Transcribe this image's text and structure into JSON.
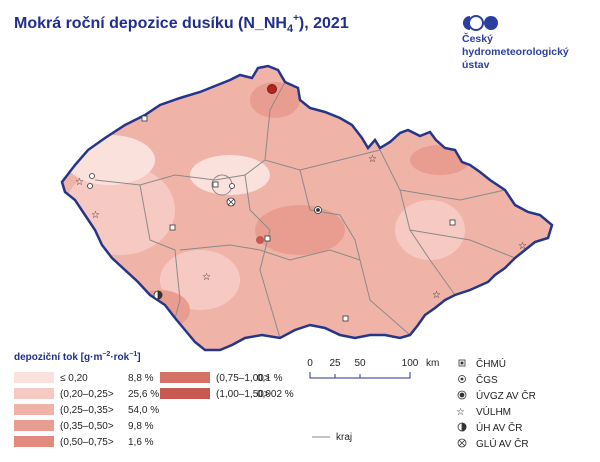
{
  "header": {
    "title": {
      "main": "Mokrá roční depozice dusíku (N_NH",
      "sub": "4",
      "sup": "+",
      "tail": "), 2021"
    },
    "logo": [
      "Český",
      "hydrometeorologický",
      "ústav"
    ]
  },
  "legend": {
    "title": {
      "main": "depoziční tok [g·m",
      "exp1": "−2",
      "mid": "·rok",
      "exp2": "−1",
      "tail": "]"
    },
    "classes": [
      {
        "label": "≤ 0,20",
        "share": "8,8 %",
        "color": "#fbe1dc"
      },
      {
        "label": "(0,20–0,25>",
        "share": "25,6 %",
        "color": "#f6cac2"
      },
      {
        "label": "(0,25–0,35>",
        "share": "54,0 %",
        "color": "#f0b3a8"
      },
      {
        "label": "(0,35–0,50>",
        "share": "9,8 %",
        "color": "#e99d91"
      },
      {
        "label": "(0,50–0,75>",
        "share": "1,6 %",
        "color": "#e28a7e"
      },
      {
        "label": "(0,75–1,00>",
        "share": "0,1    %",
        "color": "#d47265"
      },
      {
        "label": "(1,00–1,50>",
        "share": "0,002 %",
        "color": "#c65a50"
      }
    ]
  },
  "scale": {
    "ticks": [
      "0",
      "25",
      "50",
      "100"
    ],
    "unit": "km"
  },
  "boundary": {
    "label": "kraj"
  },
  "stations": [
    "ČHMÚ",
    "ČGS",
    "ÚVGZ AV ČR",
    "VÚLHM",
    "ÚH AV ČR",
    "GLÚ AV ČR"
  ]
}
